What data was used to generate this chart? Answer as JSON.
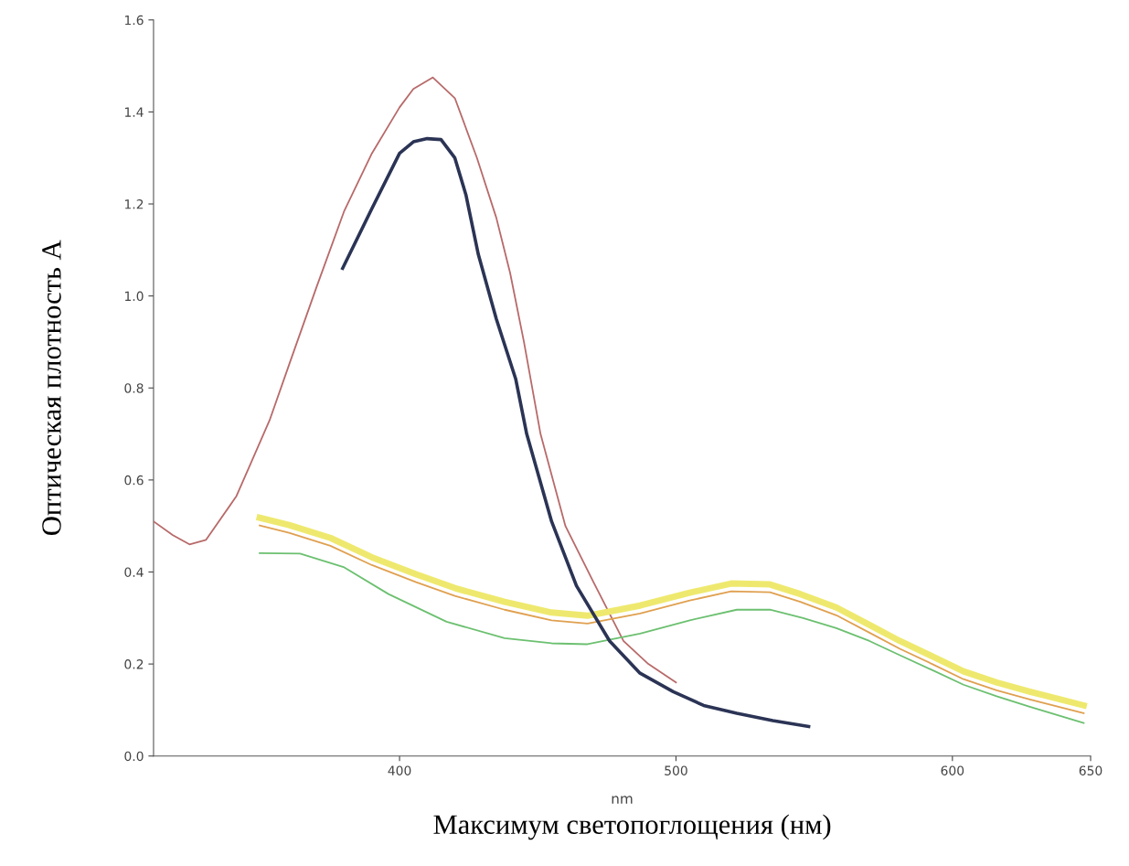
{
  "chart_data": {
    "type": "line",
    "xlabel": "nm",
    "ylabel": "Оптическая плотность А",
    "annotations": [
      "Максимум светопоглощения (нм)"
    ],
    "xlim": [
      311,
      650
    ],
    "ylim": [
      0,
      1.6
    ],
    "xticks": [
      400,
      500,
      600,
      650
    ],
    "yticks": [
      {
        "value": 0,
        "label": "0.0"
      },
      {
        "value": 0.2,
        "label": "0.2"
      },
      {
        "value": 0.4,
        "label": "0.4"
      },
      {
        "value": 0.6,
        "label": "0.6"
      },
      {
        "value": 0.8,
        "label": "0.8"
      },
      {
        "value": 1.0,
        "label": "1.0"
      },
      {
        "value": 1.2,
        "label": "1.2"
      },
      {
        "value": 1.4,
        "label": "1.4"
      },
      {
        "value": 1.6,
        "label": "1.6"
      }
    ],
    "grid": false,
    "legend": false,
    "marker": "none",
    "line_style": "solid",
    "series": [
      {
        "color": "#b86a6a",
        "x": [
          311,
          318,
          324,
          330,
          341,
          353,
          360,
          370,
          380,
          390,
          400,
          405,
          412,
          420,
          428,
          435,
          440,
          445,
          451,
          460,
          470,
          481,
          490,
          500
        ],
        "values": [
          0.51,
          0.48,
          0.46,
          0.47,
          0.565,
          0.73,
          0.85,
          1.02,
          1.185,
          1.31,
          1.41,
          1.45,
          1.475,
          1.43,
          1.3,
          1.17,
          1.05,
          0.9,
          0.7,
          0.5,
          0.38,
          0.25,
          0.2,
          0.16
        ]
      },
      {
        "color": "#2b3455",
        "x": [
          379.4,
          390,
          400,
          405,
          410,
          415,
          420,
          424,
          428.5,
          435,
          442,
          446,
          455,
          464,
          476,
          487,
          499,
          510,
          522,
          535,
          548
        ],
        "values": [
          1.06,
          1.19,
          1.31,
          1.335,
          1.342,
          1.34,
          1.3,
          1.22,
          1.09,
          0.95,
          0.82,
          0.7,
          0.51,
          0.37,
          0.25,
          0.18,
          0.14,
          0.11,
          0.093,
          0.077,
          0.064
        ]
      },
      {
        "color": "#eee96e",
        "x": [
          349.4,
          360,
          375,
          390,
          406,
          420,
          438,
          455,
          468,
          487,
          505,
          520,
          534,
          545,
          558,
          570,
          581,
          593,
          604,
          616,
          628,
          647.5
        ],
        "values": [
          0.518,
          0.502,
          0.474,
          0.432,
          0.395,
          0.365,
          0.335,
          0.312,
          0.305,
          0.327,
          0.355,
          0.375,
          0.373,
          0.352,
          0.323,
          0.285,
          0.25,
          0.216,
          0.184,
          0.16,
          0.14,
          0.11
        ]
      },
      {
        "color": "#e0a050",
        "x": [
          349.4,
          360,
          375,
          390,
          406,
          420,
          438,
          455,
          468,
          487,
          505,
          520,
          534,
          545,
          558,
          570,
          581,
          593,
          604,
          616,
          628,
          647.5
        ],
        "values": [
          0.501,
          0.485,
          0.457,
          0.415,
          0.378,
          0.348,
          0.318,
          0.295,
          0.288,
          0.31,
          0.338,
          0.358,
          0.356,
          0.335,
          0.306,
          0.268,
          0.233,
          0.199,
          0.167,
          0.143,
          0.123,
          0.093
        ]
      },
      {
        "color": "#6cc070",
        "x": [
          349.4,
          364,
          380,
          396,
          417,
          438,
          455,
          468,
          487,
          505,
          522,
          534,
          546,
          558,
          570,
          581,
          593,
          604,
          616,
          628,
          647.5
        ],
        "values": [
          0.441,
          0.44,
          0.41,
          0.352,
          0.292,
          0.256,
          0.245,
          0.243,
          0.266,
          0.295,
          0.318,
          0.318,
          0.3,
          0.278,
          0.25,
          0.219,
          0.186,
          0.155,
          0.13,
          0.107,
          0.072
        ]
      }
    ]
  }
}
